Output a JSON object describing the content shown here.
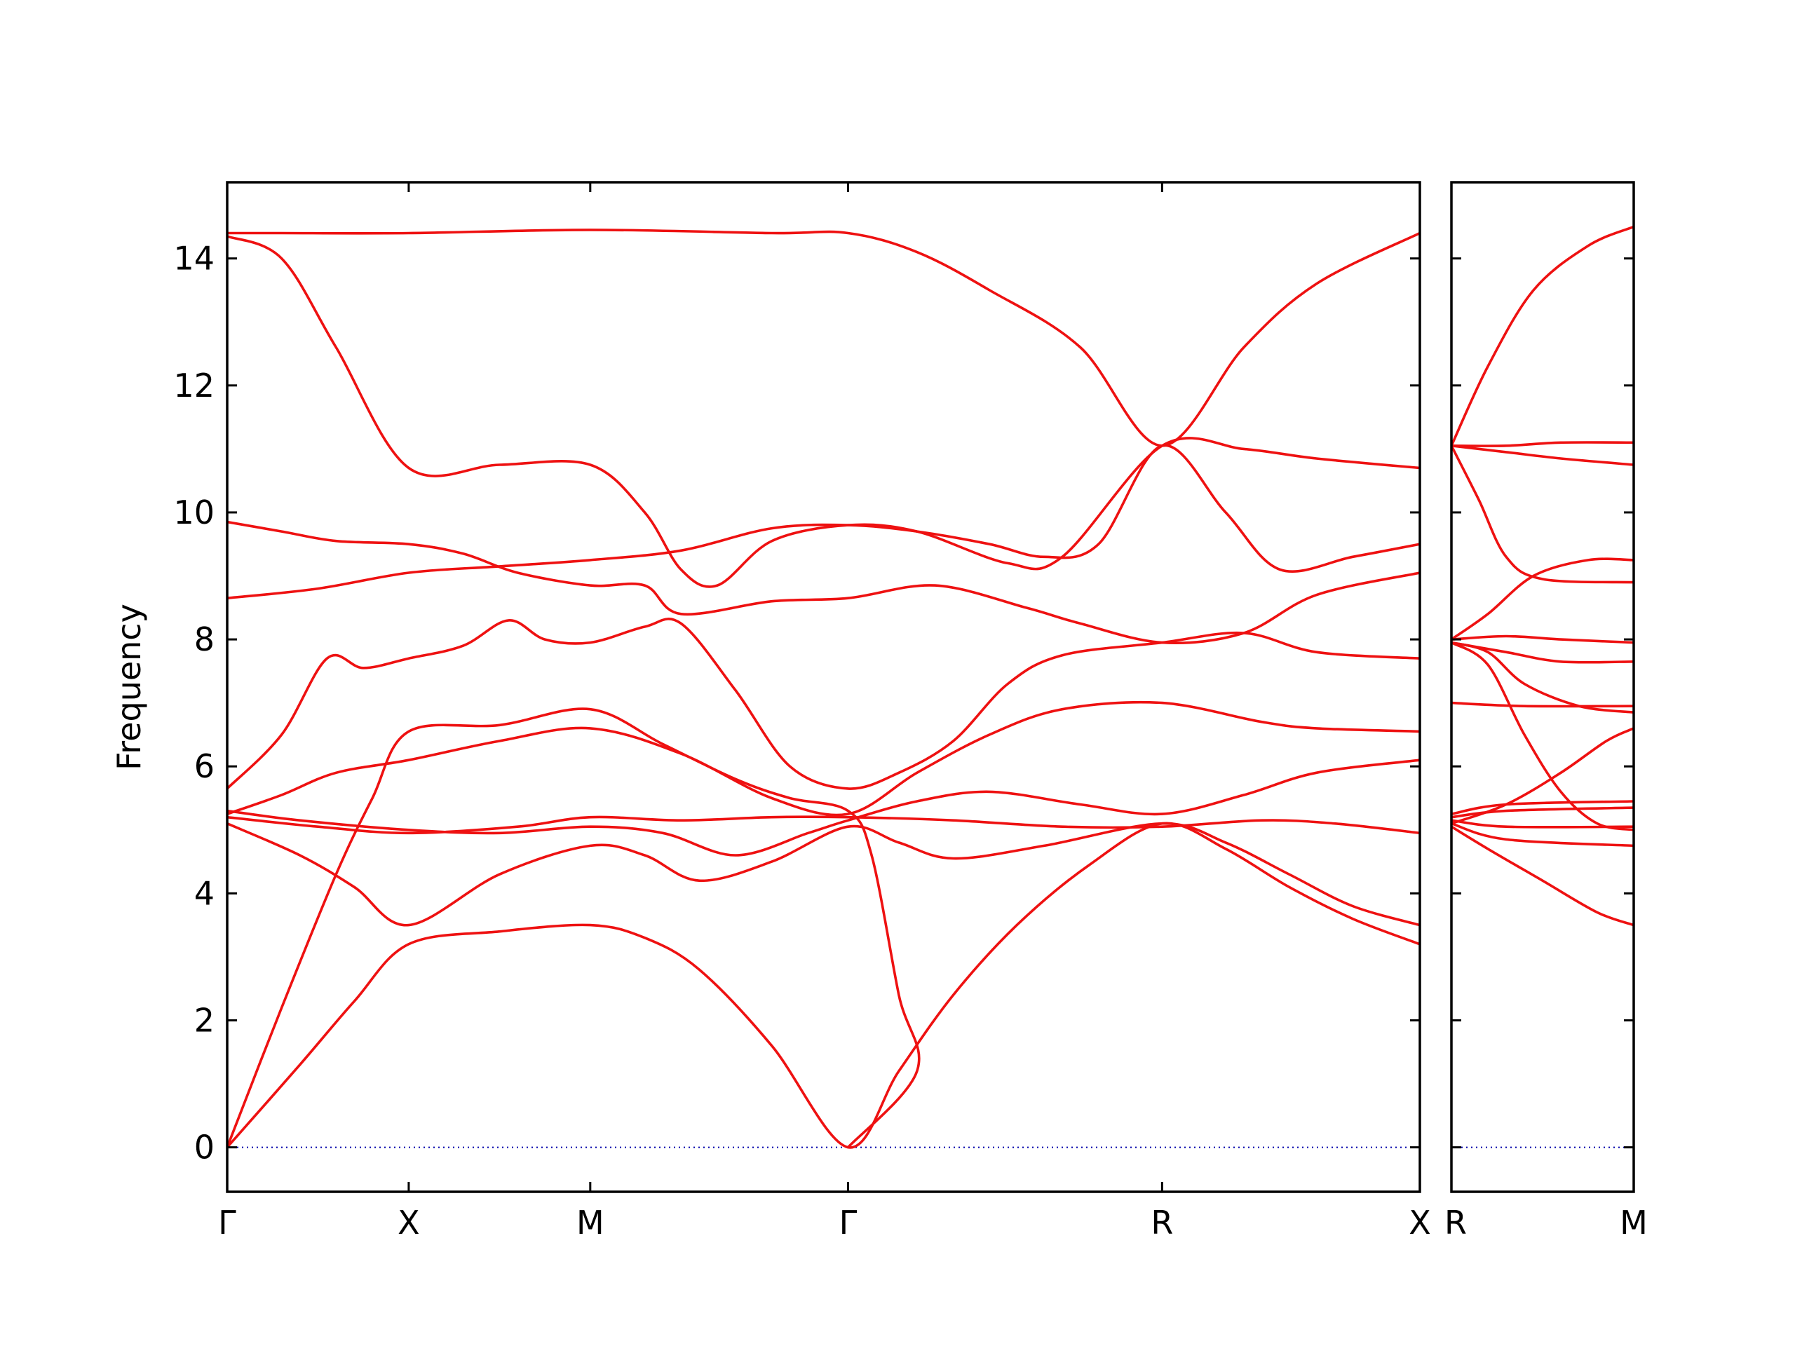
{
  "chart_data": {
    "type": "line",
    "title": "",
    "ylabel": "Frequency",
    "ylim": [
      -0.7,
      15.2
    ],
    "yticks": [
      0,
      2,
      4,
      6,
      8,
      10,
      12,
      14
    ],
    "grid": false,
    "legend": "none",
    "colors": {
      "bands": "#ee1111",
      "zero_line": "#0000aa"
    },
    "zero_line": {
      "y": 0
    },
    "panels": [
      {
        "name": "main",
        "xlim": [
          0,
          6.57
        ],
        "xticks": [
          {
            "x": 0,
            "label": "Γ"
          },
          {
            "x": 1.0,
            "label": "X"
          },
          {
            "x": 2.0,
            "label": "M"
          },
          {
            "x": 3.42,
            "label": "Γ"
          },
          {
            "x": 5.15,
            "label": "R"
          },
          {
            "x": 6.57,
            "label": "X"
          }
        ],
        "bands": [
          [
            [
              0,
              0
            ],
            [
              0.4,
              1.3
            ],
            [
              0.7,
              2.3
            ],
            [
              1.0,
              3.2
            ],
            [
              1.5,
              3.4
            ],
            [
              2.0,
              3.5
            ],
            [
              2.3,
              3.3
            ],
            [
              2.6,
              2.8
            ],
            [
              3.0,
              1.6
            ],
            [
              3.42,
              0
            ],
            [
              3.7,
              1.2
            ],
            [
              4.0,
              2.4
            ],
            [
              4.35,
              3.5
            ],
            [
              4.75,
              4.45
            ],
            [
              5.15,
              5.1
            ],
            [
              5.5,
              4.7
            ],
            [
              5.85,
              4.1
            ],
            [
              6.2,
              3.6
            ],
            [
              6.57,
              3.2
            ]
          ],
          [
            [
              0,
              0
            ],
            [
              0.3,
              2.2
            ],
            [
              0.6,
              4.3
            ],
            [
              0.8,
              5.5
            ],
            [
              1.0,
              6.55
            ],
            [
              1.5,
              6.65
            ],
            [
              2.0,
              6.9
            ],
            [
              2.4,
              6.35
            ],
            [
              2.8,
              5.8
            ],
            [
              3.1,
              5.5
            ],
            [
              3.42,
              5.3
            ],
            [
              3.55,
              4.6
            ],
            [
              3.7,
              2.4
            ],
            [
              3.8,
              1.2
            ],
            [
              3.42,
              0
            ]
          ],
          [
            [
              0,
              5.1
            ],
            [
              0.4,
              4.6
            ],
            [
              0.7,
              4.1
            ],
            [
              1.0,
              3.5
            ],
            [
              1.5,
              4.3
            ],
            [
              2.0,
              4.75
            ],
            [
              2.3,
              4.6
            ],
            [
              2.6,
              4.2
            ],
            [
              3.0,
              4.5
            ],
            [
              3.42,
              5.05
            ],
            [
              3.7,
              4.8
            ],
            [
              4.0,
              4.55
            ],
            [
              4.5,
              4.75
            ],
            [
              5.15,
              5.1
            ],
            [
              5.5,
              4.8
            ],
            [
              5.85,
              4.3
            ],
            [
              6.2,
              3.8
            ],
            [
              6.57,
              3.5
            ]
          ],
          [
            [
              0,
              5.25
            ],
            [
              0.3,
              5.55
            ],
            [
              0.6,
              5.9
            ],
            [
              1.0,
              6.1
            ],
            [
              1.5,
              6.4
            ],
            [
              2.0,
              6.6
            ],
            [
              2.5,
              6.2
            ],
            [
              3.0,
              5.5
            ],
            [
              3.42,
              5.25
            ],
            [
              3.8,
              5.9
            ],
            [
              4.2,
              6.5
            ],
            [
              4.6,
              6.9
            ],
            [
              5.15,
              7.0
            ],
            [
              5.7,
              6.7
            ],
            [
              6.0,
              6.6
            ],
            [
              6.57,
              6.55
            ]
          ],
          [
            [
              0,
              5.65
            ],
            [
              0.3,
              6.5
            ],
            [
              0.55,
              7.7
            ],
            [
              0.75,
              7.55
            ],
            [
              1.0,
              7.7
            ],
            [
              1.3,
              7.9
            ],
            [
              1.55,
              8.3
            ],
            [
              1.75,
              8.0
            ],
            [
              2.0,
              7.95
            ],
            [
              2.3,
              8.2
            ],
            [
              2.5,
              8.25
            ],
            [
              2.8,
              7.2
            ],
            [
              3.1,
              6.0
            ],
            [
              3.42,
              5.65
            ],
            [
              3.7,
              5.9
            ],
            [
              4.0,
              6.4
            ],
            [
              4.3,
              7.3
            ],
            [
              4.6,
              7.75
            ],
            [
              5.15,
              7.95
            ],
            [
              5.6,
              8.1
            ],
            [
              6.0,
              7.8
            ],
            [
              6.57,
              7.7
            ]
          ],
          [
            [
              0,
              8.65
            ],
            [
              0.5,
              8.8
            ],
            [
              1.0,
              9.05
            ],
            [
              1.5,
              9.15
            ],
            [
              2.0,
              9.25
            ],
            [
              2.5,
              9.4
            ],
            [
              3.0,
              9.75
            ],
            [
              3.42,
              9.8
            ],
            [
              3.8,
              9.7
            ],
            [
              4.2,
              9.5
            ],
            [
              4.5,
              9.3
            ],
            [
              4.8,
              9.5
            ],
            [
              5.15,
              11.05
            ],
            [
              5.5,
              10.0
            ],
            [
              5.8,
              9.1
            ],
            [
              6.2,
              9.3
            ],
            [
              6.57,
              9.5
            ]
          ],
          [
            [
              0,
              9.85
            ],
            [
              0.3,
              9.7
            ],
            [
              0.6,
              9.55
            ],
            [
              1.0,
              9.5
            ],
            [
              1.3,
              9.35
            ],
            [
              1.6,
              9.05
            ],
            [
              2.0,
              8.85
            ],
            [
              2.3,
              8.85
            ],
            [
              2.5,
              8.4
            ],
            [
              3.0,
              8.6
            ],
            [
              3.42,
              8.65
            ],
            [
              3.9,
              8.85
            ],
            [
              4.4,
              8.5
            ],
            [
              4.7,
              8.25
            ],
            [
              5.15,
              7.95
            ],
            [
              5.6,
              8.1
            ],
            [
              6.0,
              8.7
            ],
            [
              6.57,
              9.05
            ]
          ],
          [
            [
              0,
              14.4
            ],
            [
              0.3,
              14.4
            ],
            [
              1.0,
              14.4
            ],
            [
              2.0,
              14.45
            ],
            [
              3.0,
              14.4
            ],
            [
              3.42,
              14.4
            ],
            [
              3.8,
              14.1
            ],
            [
              4.2,
              13.5
            ],
            [
              4.7,
              12.6
            ],
            [
              5.15,
              11.05
            ],
            [
              5.6,
              12.6
            ],
            [
              6.0,
              13.6
            ],
            [
              6.57,
              14.4
            ]
          ],
          [
            [
              0,
              14.35
            ],
            [
              0.3,
              14.0
            ],
            [
              0.6,
              12.6
            ],
            [
              1.0,
              10.7
            ],
            [
              1.5,
              10.75
            ],
            [
              2.0,
              10.75
            ],
            [
              2.3,
              10.0
            ],
            [
              2.5,
              9.1
            ],
            [
              2.7,
              8.85
            ],
            [
              3.0,
              9.55
            ],
            [
              3.42,
              9.8
            ],
            [
              3.8,
              9.7
            ],
            [
              4.3,
              9.2
            ],
            [
              4.6,
              9.3
            ],
            [
              5.15,
              11.05
            ],
            [
              5.6,
              11.0
            ],
            [
              6.0,
              10.85
            ],
            [
              6.57,
              10.7
            ]
          ],
          [
            [
              0,
              5.3
            ],
            [
              0.4,
              5.15
            ],
            [
              1.0,
              5.0
            ],
            [
              1.5,
              4.95
            ],
            [
              2.0,
              5.05
            ],
            [
              2.4,
              4.95
            ],
            [
              2.8,
              4.6
            ],
            [
              3.2,
              4.95
            ],
            [
              3.42,
              5.15
            ],
            [
              3.8,
              5.45
            ],
            [
              4.2,
              5.6
            ],
            [
              4.7,
              5.4
            ],
            [
              5.15,
              5.25
            ],
            [
              5.6,
              5.55
            ],
            [
              6.0,
              5.9
            ],
            [
              6.57,
              6.1
            ]
          ],
          [
            [
              0,
              5.2
            ],
            [
              0.5,
              5.05
            ],
            [
              1.0,
              4.95
            ],
            [
              1.6,
              5.05
            ],
            [
              2.0,
              5.2
            ],
            [
              2.5,
              5.15
            ],
            [
              3.0,
              5.2
            ],
            [
              3.42,
              5.2
            ],
            [
              4.0,
              5.15
            ],
            [
              4.6,
              5.05
            ],
            [
              5.15,
              5.05
            ],
            [
              5.7,
              5.15
            ],
            [
              6.1,
              5.1
            ],
            [
              6.57,
              4.95
            ]
          ]
        ]
      },
      {
        "name": "side",
        "xlim": [
          0,
          1
        ],
        "xticks": [
          {
            "x": 0,
            "label": "R"
          },
          {
            "x": 1,
            "label": "M"
          }
        ],
        "bands": [
          [
            [
              0,
              11.05
            ],
            [
              0.2,
              12.3
            ],
            [
              0.45,
              13.5
            ],
            [
              0.75,
              14.2
            ],
            [
              1.0,
              14.5
            ]
          ],
          [
            [
              0,
              11.05
            ],
            [
              0.3,
              11.05
            ],
            [
              0.6,
              11.1
            ],
            [
              1.0,
              11.1
            ]
          ],
          [
            [
              0,
              11.05
            ],
            [
              0.3,
              10.95
            ],
            [
              0.6,
              10.85
            ],
            [
              1.0,
              10.75
            ]
          ],
          [
            [
              0,
              11.05
            ],
            [
              0.15,
              10.2
            ],
            [
              0.3,
              9.3
            ],
            [
              0.5,
              8.95
            ],
            [
              1.0,
              8.9
            ]
          ],
          [
            [
              0,
              8.0
            ],
            [
              0.2,
              8.4
            ],
            [
              0.45,
              9.0
            ],
            [
              0.75,
              9.25
            ],
            [
              1.0,
              9.25
            ]
          ],
          [
            [
              0,
              8.0
            ],
            [
              0.3,
              8.05
            ],
            [
              0.6,
              8.0
            ],
            [
              1.0,
              7.95
            ]
          ],
          [
            [
              0,
              7.95
            ],
            [
              0.3,
              7.8
            ],
            [
              0.6,
              7.65
            ],
            [
              1.0,
              7.65
            ]
          ],
          [
            [
              0,
              7.95
            ],
            [
              0.2,
              7.8
            ],
            [
              0.4,
              7.3
            ],
            [
              0.7,
              6.95
            ],
            [
              1.0,
              6.85
            ]
          ],
          [
            [
              0,
              7.95
            ],
            [
              0.2,
              7.6
            ],
            [
              0.4,
              6.5
            ],
            [
              0.6,
              5.6
            ],
            [
              0.8,
              5.1
            ],
            [
              1.0,
              5.0
            ]
          ],
          [
            [
              0,
              7.0
            ],
            [
              0.4,
              6.95
            ],
            [
              1.0,
              6.95
            ]
          ],
          [
            [
              0,
              5.1
            ],
            [
              0.3,
              5.4
            ],
            [
              0.6,
              5.9
            ],
            [
              0.85,
              6.4
            ],
            [
              1.0,
              6.6
            ]
          ],
          [
            [
              0,
              5.25
            ],
            [
              0.3,
              5.4
            ],
            [
              1.0,
              5.45
            ]
          ],
          [
            [
              0,
              5.2
            ],
            [
              0.3,
              5.3
            ],
            [
              1.0,
              5.35
            ]
          ],
          [
            [
              0,
              5.15
            ],
            [
              0.3,
              5.05
            ],
            [
              1.0,
              5.05
            ]
          ],
          [
            [
              0,
              5.1
            ],
            [
              0.3,
              4.85
            ],
            [
              1.0,
              4.75
            ]
          ],
          [
            [
              0,
              5.05
            ],
            [
              0.2,
              4.7
            ],
            [
              0.5,
              4.2
            ],
            [
              0.8,
              3.7
            ],
            [
              1.0,
              3.5
            ]
          ]
        ]
      }
    ]
  }
}
